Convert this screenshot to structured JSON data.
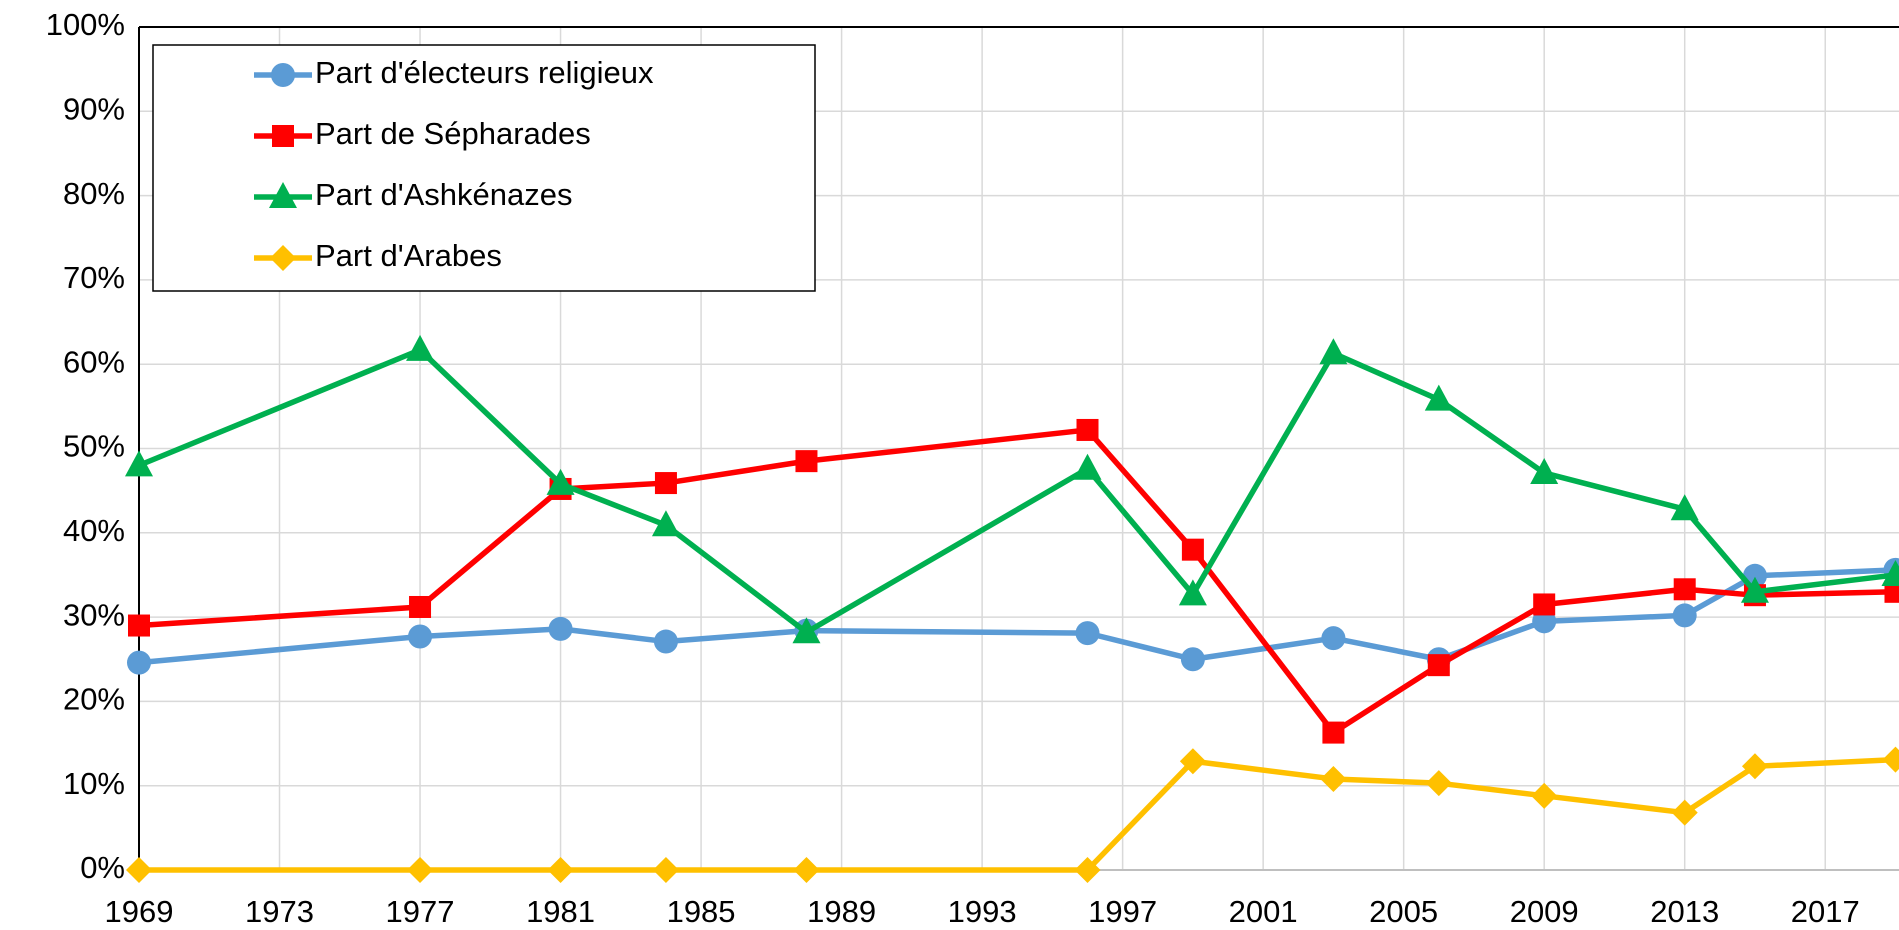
{
  "chart_data": {
    "type": "line",
    "x": [
      1969,
      1977,
      1981,
      1984,
      1988,
      1996,
      1999,
      2003,
      2006,
      2009,
      2013,
      2015,
      2019
    ],
    "series": [
      {
        "name": "Part d'électeurs religieux",
        "color": "#5b9bd5",
        "marker": "circle",
        "values": [
          24.6,
          27.7,
          28.6,
          27.1,
          28.4,
          28.1,
          25.0,
          27.5,
          25.0,
          29.5,
          30.2,
          34.9,
          35.6
        ]
      },
      {
        "name": "Part de Sépharades",
        "color": "#ff0000",
        "marker": "square",
        "values": [
          29.0,
          31.2,
          45.2,
          45.9,
          48.5,
          52.2,
          38.0,
          16.3,
          24.3,
          31.5,
          33.3,
          32.6,
          33.0
        ]
      },
      {
        "name": "Part d'Ashkénazes",
        "color": "#00b050",
        "marker": "triangle",
        "values": [
          48.0,
          61.7,
          45.8,
          40.9,
          28.2,
          47.6,
          32.7,
          61.3,
          55.8,
          47.1,
          42.8,
          33.0,
          35.0
        ]
      },
      {
        "name": "Part d'Arabes",
        "color": "#ffc000",
        "marker": "diamond",
        "values": [
          0,
          0,
          0,
          0,
          0,
          0,
          12.9,
          10.8,
          10.3,
          8.8,
          6.8,
          12.3,
          13.1
        ]
      }
    ],
    "xlim": [
      1969,
      2019.1
    ],
    "xticks": [
      1969,
      1973,
      1977,
      1981,
      1985,
      1989,
      1993,
      1997,
      2001,
      2005,
      2009,
      2013,
      2017
    ],
    "ylim": [
      0,
      100
    ],
    "yticks": [
      {
        "value": 0,
        "label": "0%"
      },
      {
        "value": 10,
        "label": "10%"
      },
      {
        "value": 20,
        "label": "20%"
      },
      {
        "value": 30,
        "label": "30%"
      },
      {
        "value": 40,
        "label": "40%"
      },
      {
        "value": 50,
        "label": "50%"
      },
      {
        "value": 60,
        "label": "60%"
      },
      {
        "value": 70,
        "label": "70%"
      },
      {
        "value": 80,
        "label": "80%"
      },
      {
        "value": 90,
        "label": "90%"
      },
      {
        "value": 100,
        "label": "100%"
      }
    ],
    "grid": true,
    "legend": "top-left"
  }
}
